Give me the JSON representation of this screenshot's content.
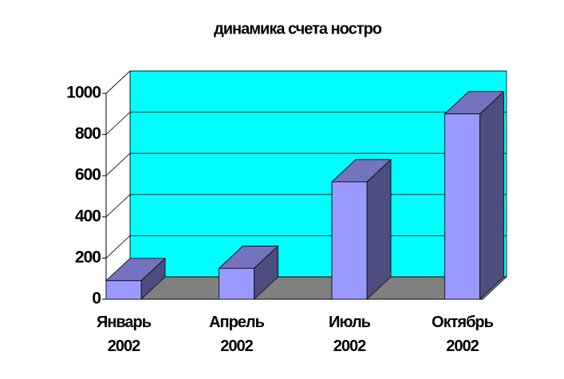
{
  "chart_data": {
    "type": "bar3d",
    "title": "динамика счета ностро",
    "categories": [
      "Январь 2002",
      "Апрель 2002",
      "Июль 2002",
      "Октябрь 2002"
    ],
    "values": [
      90,
      150,
      570,
      900
    ],
    "color": "#9999ff",
    "ylim": [
      0,
      1000
    ],
    "yticks": [
      0,
      200,
      400,
      600,
      800,
      1000
    ],
    "grid": true
  }
}
